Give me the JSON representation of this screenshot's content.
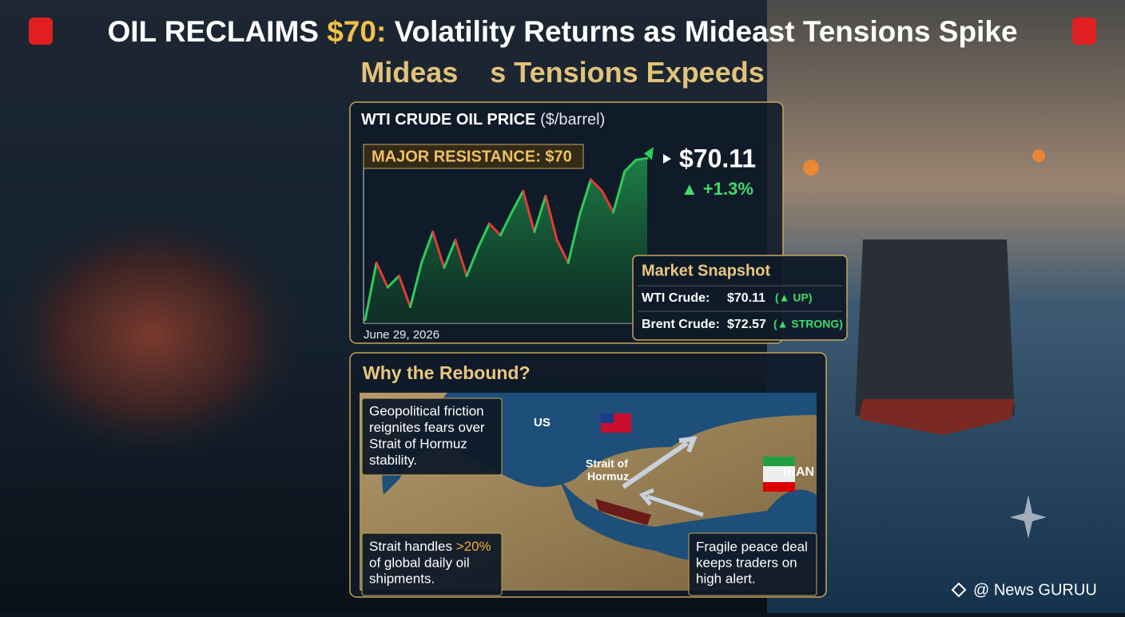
{
  "header": {
    "title": {
      "prefix": "OIL RECLAIMS",
      "highlight": "$70:",
      "rest": "Volatility Returns as Mideast Tensions Spike"
    },
    "subtitle": {
      "before": "Mideas",
      "after": "s Tensions Expeeds"
    }
  },
  "chart_data": {
    "type": "line",
    "title": "WTI CRUDE OIL PRICE",
    "unit": "($/barrel)",
    "annotation": "MAJOR RESISTANCE: $70",
    "price": "$70.11",
    "change": "▲ +1.3%",
    "categories": [
      "June 29, 2026",
      null,
      null,
      null,
      null,
      null,
      null,
      null,
      null,
      null,
      null,
      null,
      null,
      null,
      null,
      null,
      null,
      null,
      null,
      null,
      null,
      null,
      null,
      null,
      null,
      null
    ],
    "values": [
      60.2,
      63.7,
      62.2,
      62.9,
      61.0,
      63.7,
      65.6,
      63.4,
      65.1,
      62.9,
      64.6,
      66.1,
      65.4,
      66.8,
      68.1,
      65.6,
      67.8,
      65.1,
      63.7,
      66.6,
      68.8,
      68.1,
      66.8,
      69.3,
      70.0,
      70.11
    ],
    "ylim": [
      60,
      71
    ],
    "color": "#2ecc5a",
    "down_color": "#e53935"
  },
  "snapshot": {
    "title": "Market Snapshot",
    "rows": [
      [
        "WTI Crude:",
        "$70.11",
        "(▲ UP)"
      ],
      [
        "Brent Crude:",
        "$72.57",
        "(▲ STRONG)"
      ]
    ]
  },
  "rebound": {
    "title": "Why the Rebound?",
    "callouts": [
      [
        "Geopolitical friction",
        "reignites fears over",
        "Strait of Hormuz",
        "stability."
      ],
      {
        "before": "Strait handles",
        "highlight": ">20%",
        "lines": [
          "of global daily oil",
          "shipments."
        ]
      },
      [
        "Fragile peace deal",
        "keeps traders on",
        "high alert."
      ]
    ],
    "map_labels": {
      "us": "US",
      "strait": [
        "Strait of",
        "Hormuz"
      ],
      "iran": "IRAN"
    }
  },
  "footer": "@ News GURUU"
}
